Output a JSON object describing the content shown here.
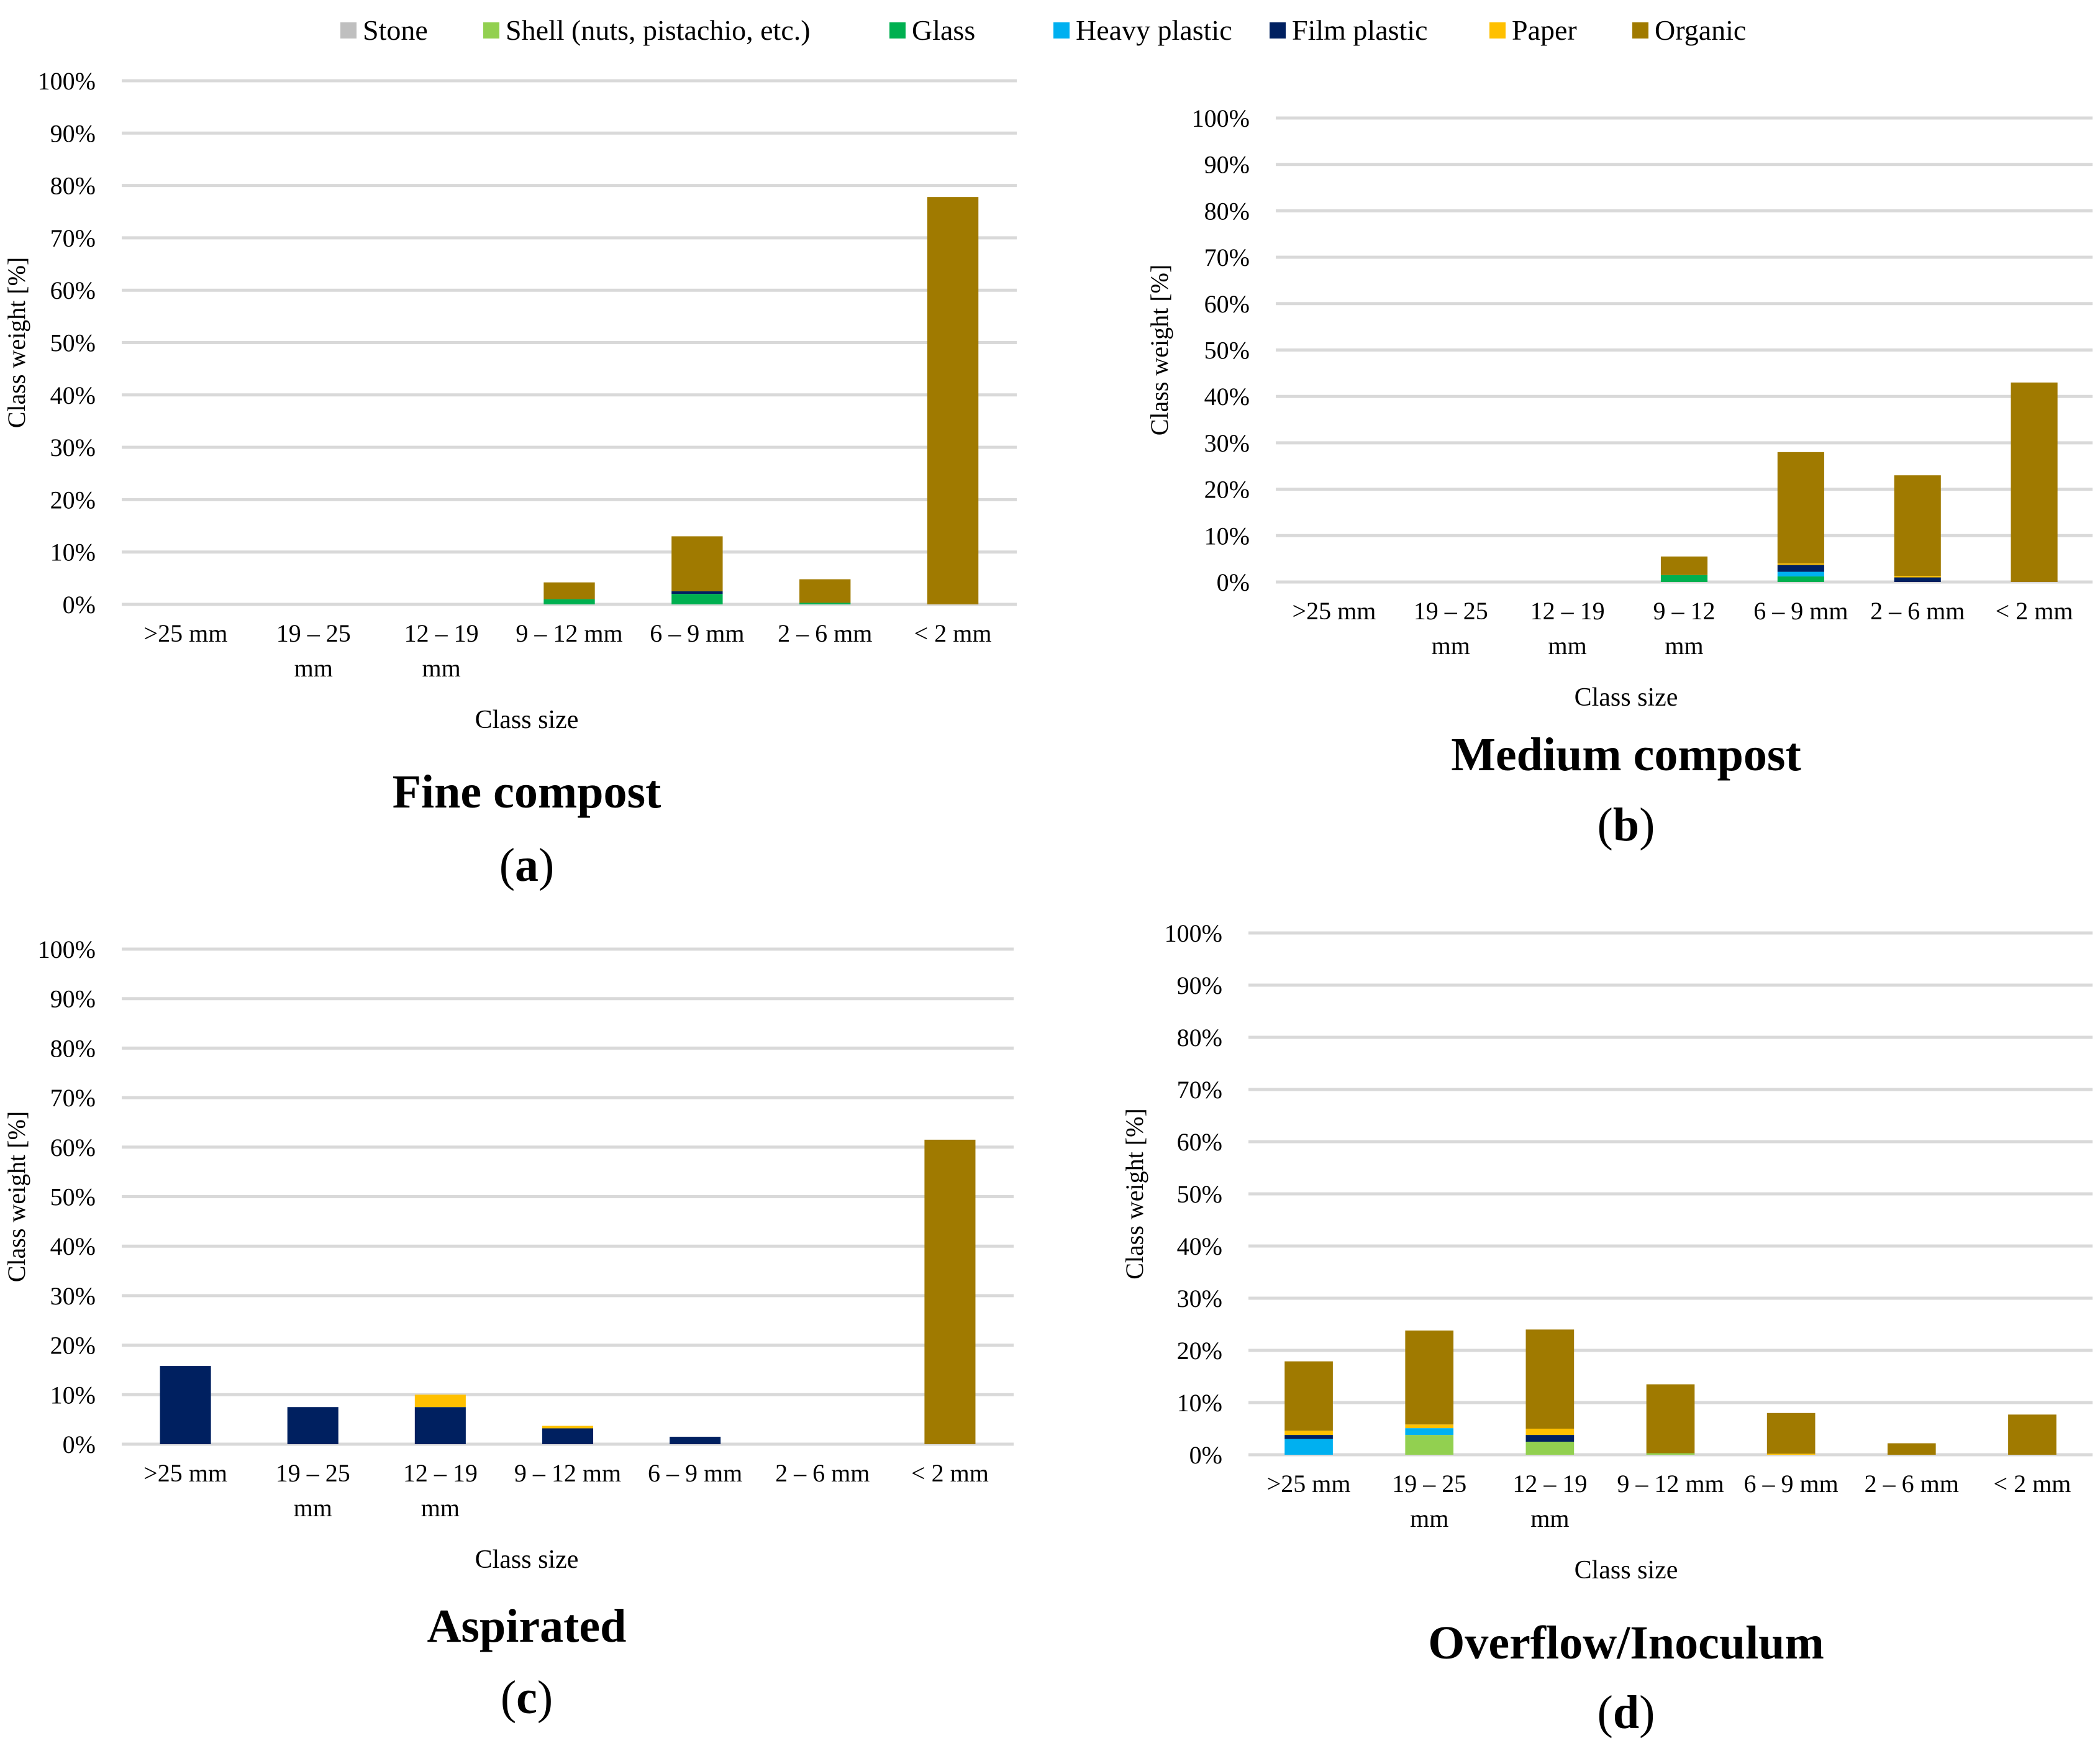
{
  "legend": [
    {
      "name": "Stone",
      "color": "#BFBFBF"
    },
    {
      "name": "Shell (nuts, pistachio, etc.)",
      "color": "#92D050"
    },
    {
      "name": "Glass",
      "color": "#00B050"
    },
    {
      "name": "Heavy plastic",
      "color": "#00B0F0"
    },
    {
      "name": "Film plastic",
      "color": "#002060"
    },
    {
      "name": "Paper",
      "color": "#FFC000"
    },
    {
      "name": "Organic",
      "color": "#A07A00"
    }
  ],
  "chart_data": [
    {
      "type": "bar",
      "stacked": true,
      "title": "Fine compost",
      "panel_label": "(a)",
      "xlabel": "Class size",
      "ylabel": "Class weight  [%]",
      "ylim": [
        0,
        100
      ],
      "yticks": [
        "0%",
        "10%",
        "20%",
        "30%",
        "40%",
        "50%",
        "60%",
        "70%",
        "80%",
        "90%",
        "100%"
      ],
      "categories": [
        ">25 mm",
        "19 – 25 mm",
        "12 – 19 mm",
        "9 – 12 mm",
        "6 – 9 mm",
        "2 – 6 mm",
        "< 2 mm"
      ],
      "series": [
        {
          "name": "Stone",
          "values": [
            0,
            0,
            0,
            0,
            0,
            0,
            0
          ]
        },
        {
          "name": "Shell (nuts, pistachio, etc.)",
          "values": [
            0,
            0,
            0,
            0,
            0,
            0,
            0
          ]
        },
        {
          "name": "Glass",
          "values": [
            0,
            0,
            0,
            1.0,
            2.0,
            0.3,
            0
          ]
        },
        {
          "name": "Heavy plastic",
          "values": [
            0,
            0,
            0,
            0,
            0,
            0,
            0
          ]
        },
        {
          "name": "Film plastic",
          "values": [
            0,
            0,
            0,
            0,
            0.5,
            0,
            0
          ]
        },
        {
          "name": "Paper",
          "values": [
            0,
            0,
            0,
            0,
            0,
            0,
            0
          ]
        },
        {
          "name": "Organic",
          "values": [
            0,
            0,
            0,
            3.2,
            10.5,
            4.5,
            77.8
          ]
        }
      ]
    },
    {
      "type": "bar",
      "stacked": true,
      "title": "Medium compost",
      "panel_label": "(b)",
      "xlabel": "Class size",
      "ylabel": "Class weight  [%]",
      "ylim": [
        0,
        100
      ],
      "yticks": [
        "0%",
        "10%",
        "20%",
        "30%",
        "40%",
        "50%",
        "60%",
        "70%",
        "80%",
        "90%",
        "100%"
      ],
      "categories": [
        ">25 mm",
        "19 – 25 mm",
        "12 – 19 mm",
        "9 – 12 mm",
        "6 – 9 mm",
        "2 – 6 mm",
        "< 2 mm"
      ],
      "series": [
        {
          "name": "Stone",
          "values": [
            0,
            0,
            0,
            0,
            0,
            0,
            0
          ]
        },
        {
          "name": "Shell (nuts, pistachio, etc.)",
          "values": [
            0,
            0,
            0,
            0,
            0,
            0,
            0
          ]
        },
        {
          "name": "Glass",
          "values": [
            0,
            0,
            0,
            1.5,
            1.2,
            0,
            0
          ]
        },
        {
          "name": "Heavy plastic",
          "values": [
            0,
            0,
            0,
            0,
            1.0,
            0,
            0
          ]
        },
        {
          "name": "Film plastic",
          "values": [
            0,
            0,
            0,
            0,
            1.5,
            1.0,
            0
          ]
        },
        {
          "name": "Paper",
          "values": [
            0,
            0,
            0,
            0,
            0.3,
            0.3,
            0
          ]
        },
        {
          "name": "Organic",
          "values": [
            0,
            0,
            0,
            4.0,
            24.0,
            21.7,
            43.0
          ]
        }
      ]
    },
    {
      "type": "bar",
      "stacked": true,
      "title": "Aspirated",
      "panel_label": "(c)",
      "xlabel": "Class size",
      "ylabel": "Class weight  [%]",
      "ylim": [
        0,
        100
      ],
      "yticks": [
        "0%",
        "10%",
        "20%",
        "30%",
        "40%",
        "50%",
        "60%",
        "70%",
        "80%",
        "90%",
        "100%"
      ],
      "categories": [
        ">25 mm",
        "19 – 25 mm",
        "12 – 19 mm",
        "9 – 12 mm",
        "6 – 9 mm",
        "2 – 6 mm",
        "< 2 mm"
      ],
      "series": [
        {
          "name": "Stone",
          "values": [
            0,
            0,
            0,
            0,
            0,
            0,
            0
          ]
        },
        {
          "name": "Shell (nuts, pistachio, etc.)",
          "values": [
            0,
            0,
            0,
            0,
            0,
            0,
            0
          ]
        },
        {
          "name": "Glass",
          "values": [
            0,
            0,
            0,
            0,
            0,
            0,
            0
          ]
        },
        {
          "name": "Heavy plastic",
          "values": [
            0,
            0,
            0,
            0,
            0,
            0,
            0
          ]
        },
        {
          "name": "Film plastic",
          "values": [
            15.8,
            7.5,
            7.5,
            3.2,
            1.5,
            0,
            0
          ]
        },
        {
          "name": "Paper",
          "values": [
            0,
            0,
            2.5,
            0.5,
            0,
            0,
            0
          ]
        },
        {
          "name": "Organic",
          "values": [
            0,
            0,
            0,
            0,
            0,
            0,
            61.5
          ]
        }
      ]
    },
    {
      "type": "bar",
      "stacked": true,
      "title": "Overflow/Inoculum",
      "panel_label": "(d)",
      "xlabel": "Class size",
      "ylabel": "Class weight  [%]",
      "ylim": [
        0,
        100
      ],
      "yticks": [
        "0%",
        "10%",
        "20%",
        "30%",
        "40%",
        "50%",
        "60%",
        "70%",
        "80%",
        "90%",
        "100%"
      ],
      "categories": [
        ">25 mm",
        "19 – 25 mm",
        "12 – 19 mm",
        "9 – 12 mm",
        "6 – 9 mm",
        "2 – 6 mm",
        "< 2 mm"
      ],
      "series": [
        {
          "name": "Stone",
          "values": [
            0,
            0,
            0,
            0,
            0,
            0,
            0
          ]
        },
        {
          "name": "Shell (nuts, pistachio, etc.)",
          "values": [
            0,
            3.8,
            2.5,
            0.3,
            0,
            0,
            0
          ]
        },
        {
          "name": "Glass",
          "values": [
            0,
            0,
            0,
            0,
            0,
            0,
            0
          ]
        },
        {
          "name": "Heavy plastic",
          "values": [
            3.0,
            1.3,
            0,
            0,
            0,
            0,
            0
          ]
        },
        {
          "name": "Film plastic",
          "values": [
            0.8,
            0,
            1.3,
            0,
            0,
            0,
            0
          ]
        },
        {
          "name": "Paper",
          "values": [
            0.8,
            0.7,
            1.2,
            0,
            0.2,
            0,
            0
          ]
        },
        {
          "name": "Organic",
          "values": [
            13.3,
            18.0,
            19.0,
            13.2,
            7.8,
            2.2,
            7.7
          ]
        }
      ]
    }
  ]
}
